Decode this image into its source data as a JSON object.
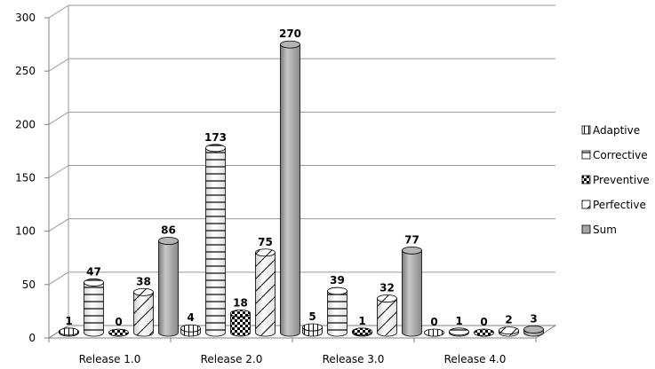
{
  "chart_data": {
    "type": "bar",
    "style": "3d-cylinder",
    "categories": [
      "Release 1.0",
      "Release 2.0",
      "Release 3.0",
      "Release 4.0"
    ],
    "series": [
      {
        "name": "Adaptive",
        "values": [
          1,
          4,
          5,
          0
        ],
        "pattern": "vertical-lines",
        "color": "#ffffff"
      },
      {
        "name": "Corrective",
        "values": [
          47,
          173,
          39,
          1
        ],
        "pattern": "horizontal-lines",
        "color": "#ffffff"
      },
      {
        "name": "Preventive",
        "values": [
          0,
          18,
          1,
          0
        ],
        "pattern": "checker",
        "color": "#000000"
      },
      {
        "name": "Perfective",
        "values": [
          38,
          75,
          32,
          2
        ],
        "pattern": "diagonal-lines",
        "color": "#ffffff"
      },
      {
        "name": "Sum",
        "values": [
          86,
          270,
          77,
          3
        ],
        "pattern": "solid",
        "color": "#a6a6a6"
      }
    ],
    "y_ticks": [
      "0",
      "50",
      "100",
      "150",
      "200",
      "250",
      "300"
    ],
    "ylim": [
      0,
      300
    ],
    "legend_position": "right",
    "grid": true
  }
}
